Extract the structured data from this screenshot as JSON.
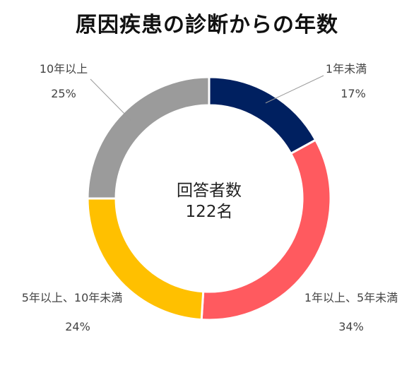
{
  "chart_data": {
    "type": "pie",
    "title": "原因疾患の診断からの年数",
    "center_text": [
      "回答者数",
      "122名"
    ],
    "slices": [
      {
        "label": "1年未満",
        "value": 17,
        "percent_label": "17%",
        "color": "#002060"
      },
      {
        "label": "1年以上、5年未満",
        "value": 34,
        "percent_label": "34%",
        "color": "#FF5A5F"
      },
      {
        "label": "5年以上、10年未満",
        "value": 24,
        "percent_label": "24%",
        "color": "#FFC000"
      },
      {
        "label": "10年以上",
        "value": 25,
        "percent_label": "25%",
        "color": "#9B9B9B"
      }
    ],
    "legend": "none",
    "grid": false
  }
}
